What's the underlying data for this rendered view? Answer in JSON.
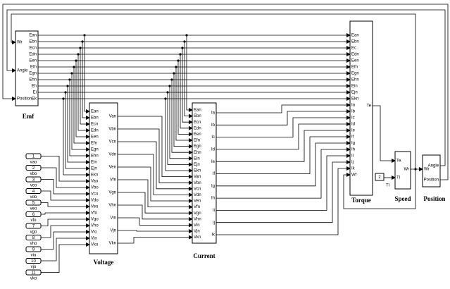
{
  "blocks": {
    "emf": {
      "label": "Emf",
      "inputs": [
        "Wr",
        "Angle",
        "Position"
      ],
      "outputs": [
        "Ean",
        "Ebn",
        "Ecn",
        "Edn",
        "Een",
        "Efn",
        "Egn",
        "Ehn",
        "Eh",
        "Ei",
        "Ek"
      ]
    },
    "voltage": {
      "label": "Voltage",
      "inputs": [
        "Ean",
        "Ebn",
        "Ecn",
        "Edn",
        "Een",
        "Efn",
        "Egn",
        "Ehn",
        "Ein",
        "Ejn",
        "Ekn",
        "Vao",
        "Vbo",
        "Vco",
        "Vdo",
        "Veo",
        "Vfo",
        "Vgo",
        "Vho",
        "Vio",
        "Vjo",
        "Vko"
      ],
      "outputs": [
        "Van",
        "Vbn",
        "Vcn",
        "Vdn",
        "Ven",
        "Vfn",
        "Vgn",
        "Vhn",
        "Vin",
        "Vjn",
        "Vkn"
      ]
    },
    "current": {
      "label": "Current",
      "inputs": [
        "Ean",
        "Ebn",
        "Ecn",
        "Edn",
        "Een",
        "Efn",
        "Egn",
        "Ehn",
        "Ein",
        "Ejn",
        "Ekn",
        "Van",
        "Vbn",
        "Vcn",
        "Vdn",
        "Ven",
        "Vfn",
        "Vgn",
        "Vhn",
        "Vin",
        "Vjn",
        "Vkn"
      ],
      "outputs": [
        "Ia",
        "Ib",
        "Ic",
        "Id",
        "Ie",
        "If",
        "Ig",
        "Ih",
        "Ii",
        "Ij",
        "Ik"
      ]
    },
    "torque": {
      "label": "Torque",
      "inputs": [
        "Ean",
        "Ebn",
        "Ec",
        "Edn",
        "Een",
        "Efn",
        "Egn",
        "Ehn",
        "Ein",
        "Ejn",
        "Ekn",
        "Ia",
        "Ib",
        "Ic",
        "Id",
        "Ie",
        "If",
        "Ig",
        "Ih",
        "Ii",
        "Ij",
        "Ik",
        "Wr"
      ],
      "outputs": [
        "Te"
      ]
    },
    "speed": {
      "label": "Speed",
      "inputs": [
        "Te",
        "Tl"
      ],
      "outputs": [
        "Wr"
      ]
    },
    "position": {
      "label": "Position",
      "inputs": [
        "Wr"
      ],
      "outputs": [
        "Angle",
        "Position"
      ]
    }
  },
  "constants": [
    {
      "value": "1",
      "label": "vao"
    },
    {
      "value": "2",
      "label": "vbo"
    },
    {
      "value": "3",
      "label": "vco"
    },
    {
      "value": "4",
      "label": "vdo"
    },
    {
      "value": "5",
      "label": "veo"
    },
    {
      "value": "6",
      "label": "vfo"
    },
    {
      "value": "7",
      "label": "vgo"
    },
    {
      "value": "8",
      "label": "vho"
    },
    {
      "value": "9",
      "label": "vio"
    },
    {
      "value": "10",
      "label": "vjo"
    },
    {
      "value": "11",
      "label": "vko"
    }
  ],
  "load_constant": {
    "value": "2",
    "label": "Tl"
  }
}
